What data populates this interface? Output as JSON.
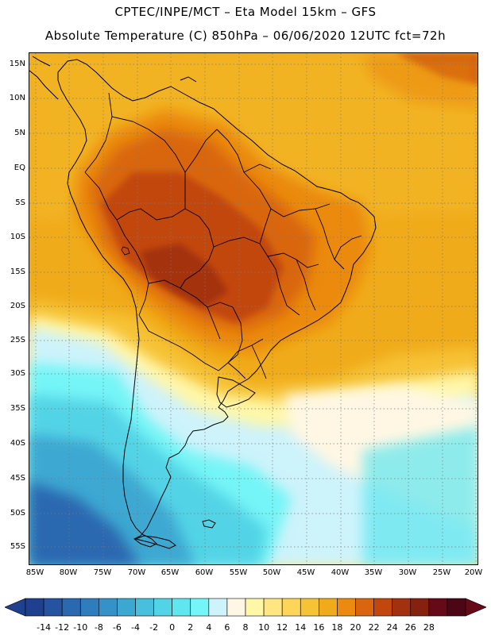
{
  "header": {
    "line1": "CPTEC/INPE/MCT –  Eta Model 15km – GFS",
    "line2": "Absolute Temperature (C) 850hPa – 06/06/2020 12UTC fct=72h"
  },
  "map": {
    "lat_labels": [
      "15N",
      "10N",
      "5N",
      "EQ",
      "5S",
      "10S",
      "15S",
      "20S",
      "25S",
      "30S",
      "35S",
      "40S",
      "45S",
      "50S",
      "55S"
    ],
    "lon_labels": [
      "85W",
      "80W",
      "75W",
      "70W",
      "65W",
      "60W",
      "55W",
      "50W",
      "45W",
      "40W",
      "35W",
      "30W",
      "25W",
      "20W"
    ],
    "grid": "dotted"
  },
  "colorbar": {
    "labels": [
      "-14",
      "-12",
      "-10",
      "-8",
      "-6",
      "-4",
      "-2",
      "0",
      "2",
      "4",
      "6",
      "8",
      "10",
      "12",
      "14",
      "16",
      "18",
      "20",
      "22",
      "24",
      "26",
      "28"
    ],
    "colors": [
      "#1f3f8f",
      "#2553a0",
      "#2a68b0",
      "#2f7dbf",
      "#3592c8",
      "#3ca8d2",
      "#47bfdd",
      "#52d4e6",
      "#5fe6ef",
      "#74f5f7",
      "#cdf3fb",
      "#fff7e3",
      "#fff7a8",
      "#ffe680",
      "#fdd659",
      "#f6c236",
      "#f0ab1a",
      "#eb8a0f",
      "#d9660f",
      "#c2470f",
      "#a3300f",
      "#862110",
      "#660a18",
      "#4d0615"
    ],
    "under_color": "#1f3f8f",
    "over_color": "#660a18"
  }
}
